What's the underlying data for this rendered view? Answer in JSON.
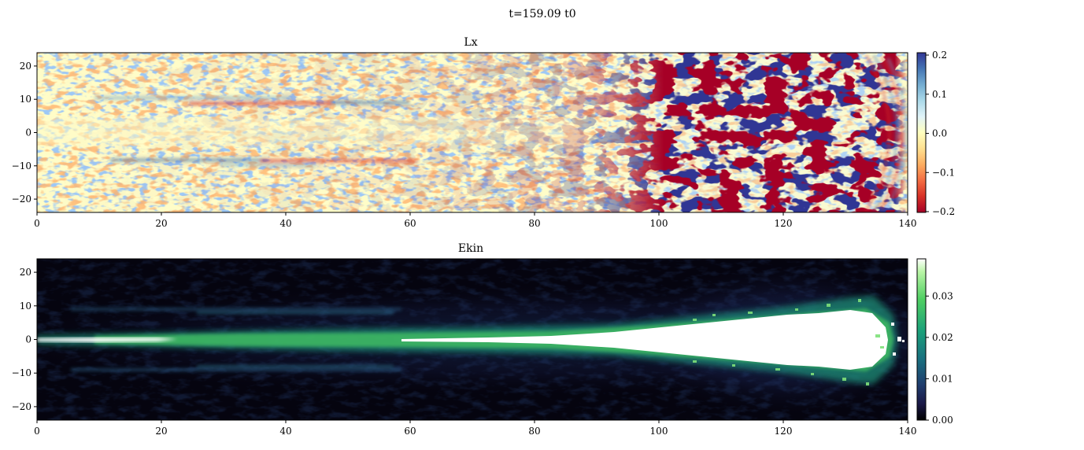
{
  "figure": {
    "suptitle": "t=159.09 t0"
  },
  "chart_data": [
    {
      "type": "heatmap",
      "title": "Lx",
      "xlim": [
        0,
        140
      ],
      "ylim": [
        -24,
        24
      ],
      "xticks": [
        0,
        20,
        40,
        60,
        80,
        100,
        120,
        140
      ],
      "yticks": [
        20,
        10,
        0,
        -10,
        -20
      ],
      "colormap": "RdYlBu",
      "colorbar": {
        "range": [
          -0.2,
          0.2
        ],
        "ticks": [
          "0.2",
          "0.1",
          "0.0",
          "−0.1",
          "−0.2"
        ]
      },
      "description_values": {
        "structure": "weak fluctuations near zero for x<90, strong saturated ±0.2 turbulent patches for x in 95–138, antisymmetric streaks near y=±8 for x in 10–60",
        "colors": [
          "#a50026",
          "#f46d43",
          "#fee090",
          "#ffffbf",
          "#e0f3f8",
          "#74add1",
          "#313695"
        ]
      }
    },
    {
      "type": "heatmap",
      "title": "Ekin",
      "xlim": [
        0,
        140
      ],
      "ylim": [
        -24,
        24
      ],
      "xticks": [
        0,
        20,
        40,
        60,
        80,
        100,
        120,
        140
      ],
      "yticks": [
        20,
        10,
        0,
        -10,
        -20
      ],
      "colormap": "cubehelix-green",
      "colorbar": {
        "range": [
          0.0,
          0.039
        ],
        "ticks": [
          "0.03",
          "0.02",
          "0.01",
          "0.00"
        ]
      },
      "description_values": {
        "structure": "bright jet along y=0 from x=0 to ~25, dimmer core 25–60, bright core 60–138 widening to |y|~8 near x=115–135, faint side streaks at y=±8 for x 10–60",
        "colors": [
          "#000000",
          "#1b1740",
          "#1f5a73",
          "#1e9a6c",
          "#5fd45a",
          "#ffffff"
        ]
      }
    }
  ]
}
